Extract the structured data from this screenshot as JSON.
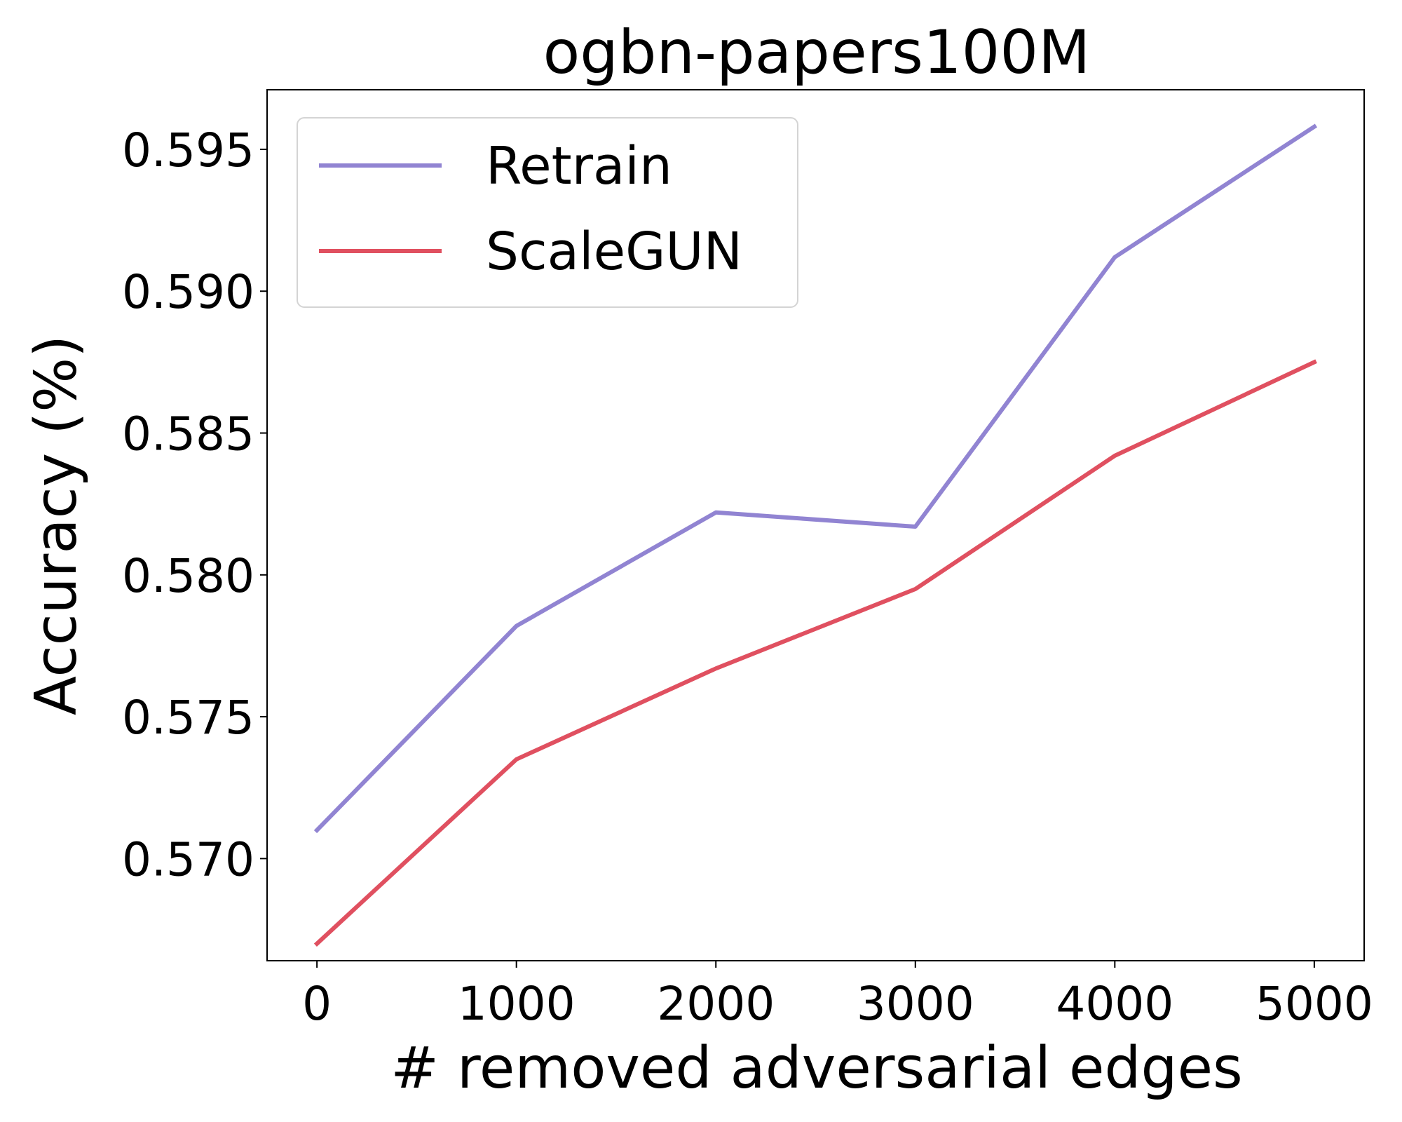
{
  "chart_data": {
    "type": "line",
    "title": "ogbn-papers100M",
    "xlabel": "# removed adversarial edges",
    "ylabel": "Accuracy (%)",
    "x": [
      0,
      1000,
      2000,
      3000,
      4000,
      5000
    ],
    "xticks": [
      "0",
      "1000",
      "2000",
      "3000",
      "4000",
      "5000"
    ],
    "xlim": [
      -250,
      5250
    ],
    "yticks": [
      "0.570",
      "0.575",
      "0.580",
      "0.585",
      "0.590",
      "0.595"
    ],
    "ylim": [
      0.5664,
      0.5971
    ],
    "grid": false,
    "legend_position": "upper-left",
    "series": [
      {
        "name": "Retrain",
        "color": "#9184d2",
        "values": [
          0.571,
          0.5782,
          0.5822,
          0.5817,
          0.5912,
          0.5958
        ]
      },
      {
        "name": "ScaleGUN",
        "color": "#e05060",
        "values": [
          0.567,
          0.5735,
          0.5767,
          0.5795,
          0.5842,
          0.5875
        ]
      }
    ]
  }
}
